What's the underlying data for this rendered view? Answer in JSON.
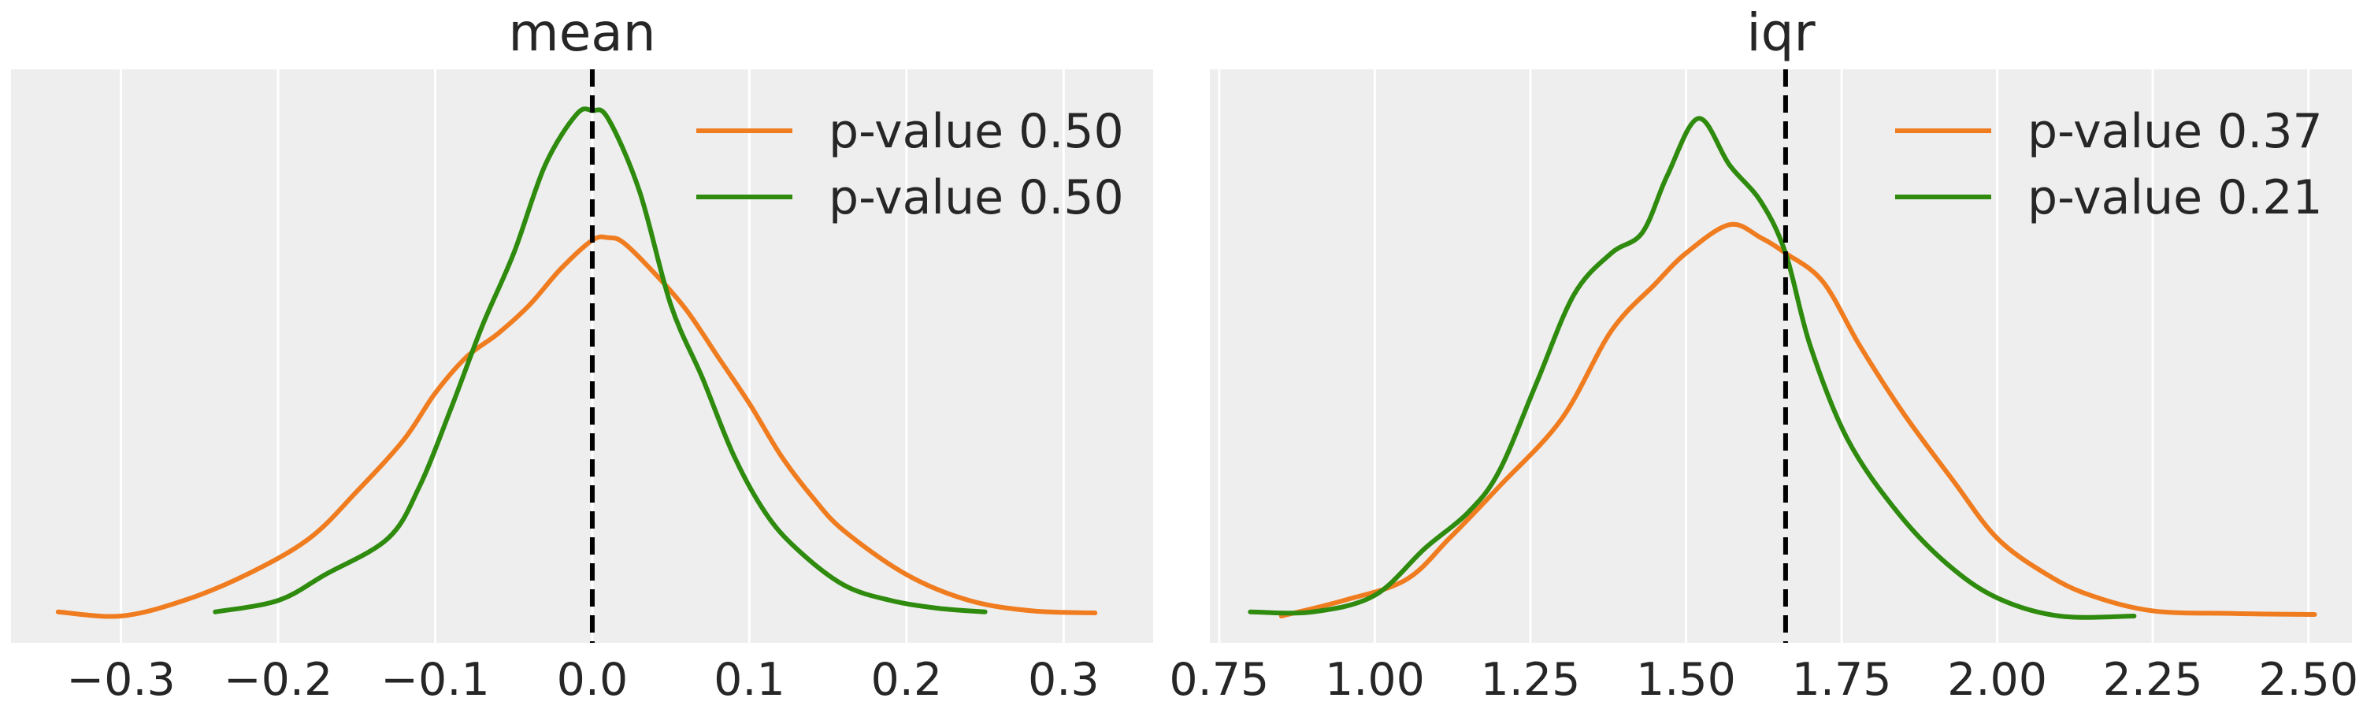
{
  "chart_data": [
    {
      "type": "line",
      "title": "mean",
      "xlim": [
        -0.37,
        0.357
      ],
      "ylim": [
        0,
        1.0
      ],
      "xticks": [
        -0.3,
        -0.2,
        -0.1,
        0.0,
        0.1,
        0.2,
        0.3
      ],
      "xtick_labels": [
        "−0.3",
        "−0.2",
        "−0.1",
        "0.0",
        "0.1",
        "0.2",
        "0.3"
      ],
      "grid": true,
      "legend_position": "top-right",
      "reference_line_x": 0.0,
      "series": [
        {
          "name": "p-value 0.50",
          "color": "#f07c20",
          "x": [
            -0.34,
            -0.3,
            -0.26,
            -0.22,
            -0.18,
            -0.15,
            -0.12,
            -0.1,
            -0.08,
            -0.06,
            -0.04,
            -0.02,
            0.0,
            0.01,
            0.02,
            0.04,
            0.06,
            0.08,
            0.1,
            0.12,
            0.14,
            0.16,
            0.2,
            0.24,
            0.28,
            0.32
          ],
          "y": [
            0.008,
            0.0,
            0.03,
            0.08,
            0.15,
            0.24,
            0.34,
            0.43,
            0.5,
            0.545,
            0.6,
            0.67,
            0.725,
            0.73,
            0.72,
            0.66,
            0.59,
            0.5,
            0.41,
            0.31,
            0.23,
            0.165,
            0.08,
            0.03,
            0.01,
            0.006
          ]
        },
        {
          "name": "p-value 0.50",
          "color": "#2e8b0e",
          "x": [
            -0.24,
            -0.2,
            -0.17,
            -0.13,
            -0.11,
            -0.09,
            -0.07,
            -0.05,
            -0.03,
            -0.01,
            0.0,
            0.01,
            0.03,
            0.05,
            0.07,
            0.09,
            0.11,
            0.13,
            0.16,
            0.19,
            0.22,
            0.25
          ],
          "y": [
            0.008,
            0.03,
            0.08,
            0.15,
            0.25,
            0.4,
            0.56,
            0.7,
            0.87,
            0.968,
            0.975,
            0.96,
            0.82,
            0.6,
            0.46,
            0.31,
            0.2,
            0.13,
            0.06,
            0.03,
            0.015,
            0.008
          ]
        }
      ]
    },
    {
      "type": "line",
      "title": "iqr",
      "xlim": [
        0.735,
        2.57
      ],
      "ylim": [
        0,
        1.0
      ],
      "xticks": [
        0.75,
        1.0,
        1.25,
        1.5,
        1.75,
        2.0,
        2.25,
        2.5
      ],
      "xtick_labels": [
        "0.75",
        "1.00",
        "1.25",
        "1.50",
        "1.75",
        "2.00",
        "2.25",
        "2.50"
      ],
      "grid": true,
      "legend_position": "top-right",
      "reference_line_x": 1.66,
      "series": [
        {
          "name": "p-value 0.37",
          "color": "#f07c20",
          "x": [
            0.85,
            0.95,
            1.05,
            1.12,
            1.2,
            1.3,
            1.38,
            1.45,
            1.5,
            1.57,
            1.62,
            1.66,
            1.72,
            1.78,
            1.85,
            1.93,
            2.0,
            2.08,
            2.15,
            2.25,
            2.38,
            2.51
          ],
          "y": [
            0.0,
            0.03,
            0.07,
            0.15,
            0.25,
            0.38,
            0.55,
            0.64,
            0.7,
            0.755,
            0.73,
            0.7,
            0.645,
            0.52,
            0.39,
            0.26,
            0.15,
            0.08,
            0.04,
            0.01,
            0.005,
            0.003
          ]
        },
        {
          "name": "p-value 0.21",
          "color": "#2e8b0e",
          "x": [
            0.8,
            0.9,
            1.0,
            1.08,
            1.15,
            1.2,
            1.26,
            1.32,
            1.38,
            1.43,
            1.47,
            1.52,
            1.57,
            1.62,
            1.66,
            1.7,
            1.76,
            1.84,
            1.92,
            2.0,
            2.1,
            2.22
          ],
          "y": [
            0.008,
            0.008,
            0.04,
            0.13,
            0.2,
            0.28,
            0.45,
            0.62,
            0.7,
            0.74,
            0.85,
            0.96,
            0.87,
            0.8,
            0.7,
            0.52,
            0.34,
            0.2,
            0.1,
            0.035,
            0.0,
            0.0
          ]
        }
      ]
    }
  ]
}
